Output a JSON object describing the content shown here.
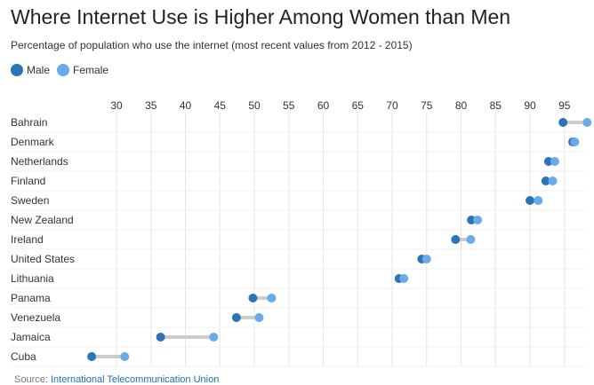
{
  "chart_data": {
    "type": "dumbbell",
    "title": "Where Internet Use is Higher Among Women than Men",
    "subtitle": "Percentage of population who use the internet (most recent values from 2012 - 2015)",
    "legend": [
      {
        "name": "Male",
        "color": "#2a74b8"
      },
      {
        "name": "Female",
        "color": "#68aaea"
      }
    ],
    "xlim": [
      26,
      98
    ],
    "xticks": [
      30,
      35,
      40,
      45,
      50,
      55,
      60,
      65,
      70,
      75,
      80,
      85,
      90,
      95
    ],
    "categories": [
      "Bahrain",
      "Denmark",
      "Netherlands",
      "Finland",
      "Sweden",
      "New Zealand",
      "Ireland",
      "United States",
      "Lithuania",
      "Panama",
      "Venezuela",
      "Jamaica",
      "Cuba"
    ],
    "series": [
      {
        "name": "Male",
        "values": [
          94.8,
          96.2,
          92.7,
          92.3,
          90.0,
          81.5,
          79.2,
          74.3,
          71.0,
          49.8,
          47.4,
          36.4,
          26.4
        ]
      },
      {
        "name": "Female",
        "values": [
          98.3,
          96.5,
          93.6,
          93.3,
          91.2,
          82.4,
          81.4,
          75.0,
          71.7,
          52.5,
          50.7,
          44.1,
          31.2
        ]
      }
    ],
    "source_prefix": "Source: ",
    "source_name": "International Telecommunication Union"
  }
}
